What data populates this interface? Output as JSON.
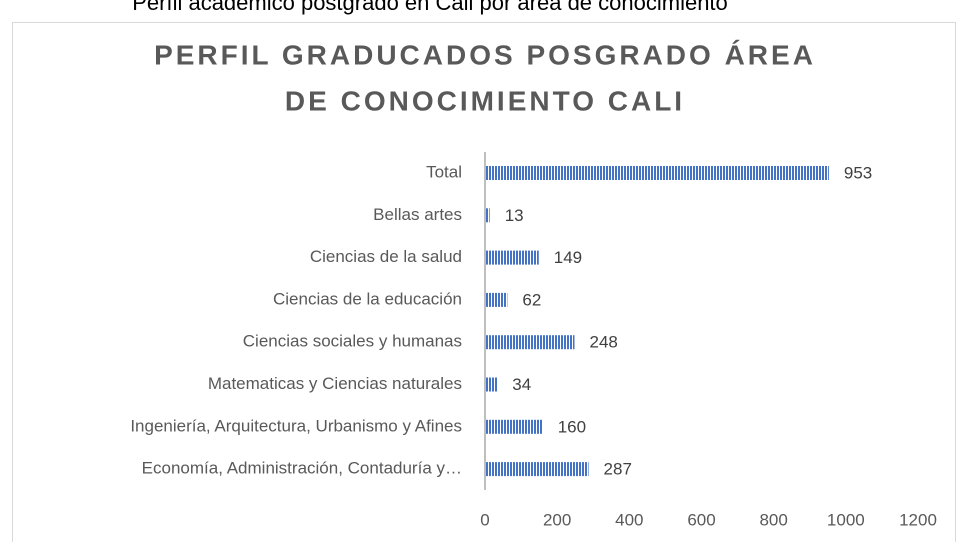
{
  "caption": "Perfil académico postgrado en Cali por área de conocimiento",
  "chart_data": {
    "type": "barh",
    "title": [
      "PERFIL GRADUCADOS POSGRADO ÁREA",
      "DE CONOCIMIENTO CALI"
    ],
    "categories": [
      "Total",
      "Bellas artes",
      "Ciencias de la salud",
      "Ciencias de la educación",
      "Ciencias  sociales y humanas",
      "Matematicas y Ciencias naturales",
      "Ingeniería, Arquitectura, Urbanismo y Afines",
      "Economía, Administración, Contaduría y…"
    ],
    "values": [
      953,
      13,
      149,
      62,
      248,
      34,
      160,
      287
    ],
    "color": "#4472c4",
    "xlim": [
      0,
      1200
    ],
    "xticks": [
      0,
      200,
      400,
      600,
      800,
      1000,
      1200
    ],
    "grid": false
  }
}
